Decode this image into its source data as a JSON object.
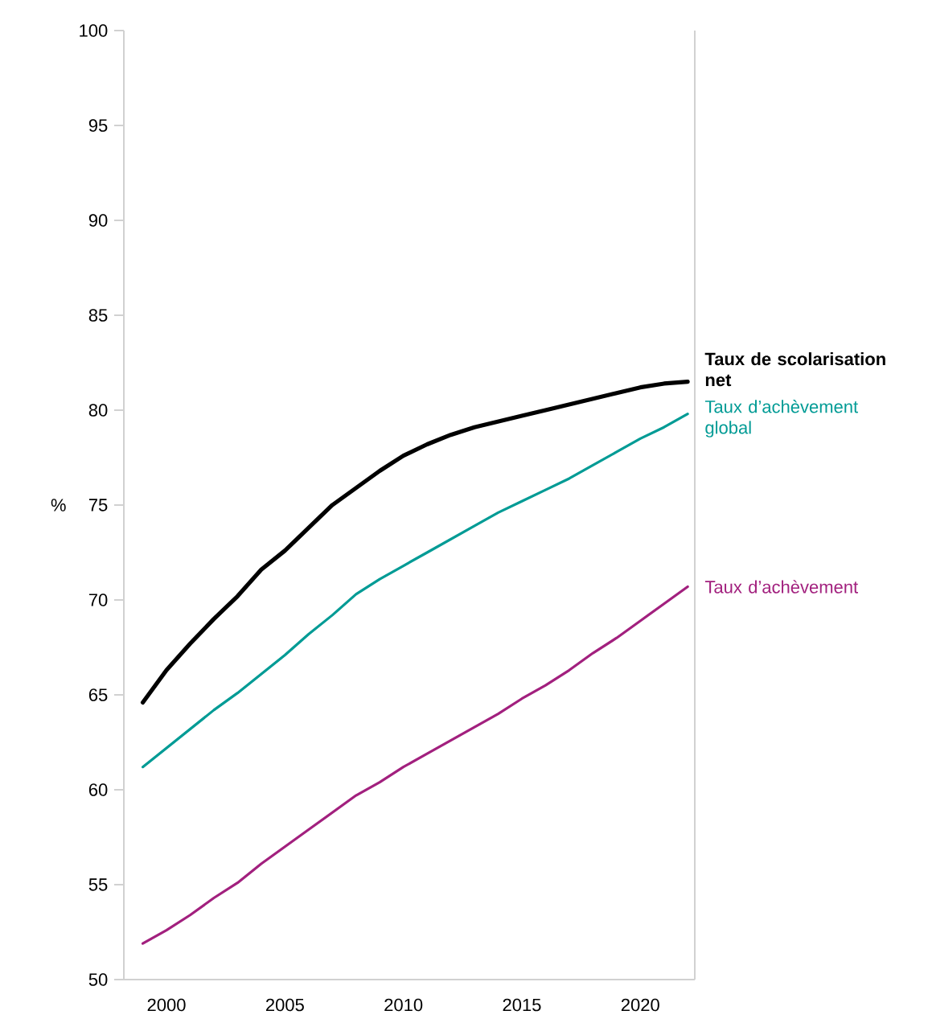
{
  "chart_data": {
    "type": "line",
    "ylabel": "%",
    "x": [
      1999,
      2000,
      2001,
      2002,
      2003,
      2004,
      2005,
      2006,
      2007,
      2008,
      2009,
      2010,
      2011,
      2012,
      2013,
      2014,
      2015,
      2016,
      2017,
      2018,
      2019,
      2020,
      2021,
      2022
    ],
    "xlim": [
      1998.2,
      2022.3
    ],
    "xticks": [
      2000,
      2005,
      2010,
      2015,
      2020
    ],
    "ylim": [
      50,
      100
    ],
    "yticks": [
      50,
      55,
      60,
      65,
      70,
      75,
      80,
      85,
      90,
      95,
      100
    ],
    "grid": false,
    "marker": "none",
    "line_style": "solid",
    "series": [
      {
        "name": "**Taux de scolarisation net**",
        "color": "#000000",
        "values": [
          64.6,
          66.3,
          67.7,
          69.0,
          70.2,
          71.6,
          72.6,
          73.8,
          75.0,
          75.9,
          76.8,
          77.6,
          78.2,
          78.7,
          79.1,
          79.4,
          79.7,
          80.0,
          80.3,
          80.6,
          80.9,
          81.2,
          81.4,
          81.5
        ]
      },
      {
        "name": "Taux d’achèvement global",
        "color": "#009b95",
        "values": [
          61.2,
          62.2,
          63.2,
          64.2,
          65.1,
          66.1,
          67.1,
          68.2,
          69.2,
          70.3,
          71.1,
          71.8,
          72.5,
          73.2,
          73.9,
          74.6,
          75.2,
          75.8,
          76.4,
          77.1,
          77.8,
          78.5,
          79.1,
          79.8
        ]
      },
      {
        "name": "Taux d’achèvement",
        "color": "#a2207e",
        "values": [
          51.9,
          52.6,
          53.4,
          54.3,
          55.1,
          56.1,
          57.0,
          57.9,
          58.8,
          59.7,
          60.4,
          61.2,
          61.9,
          62.6,
          63.3,
          64.0,
          64.8,
          65.5,
          66.3,
          67.2,
          68.0,
          68.9,
          69.8,
          70.7
        ]
      }
    ]
  }
}
